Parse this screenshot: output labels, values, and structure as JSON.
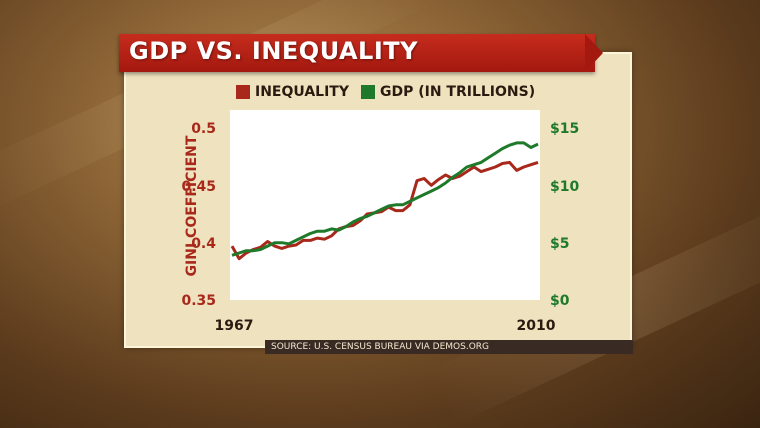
{
  "title": "GDP VS. INEQUALITY",
  "source": "SOURCE: U.S. CENSUS BUREAU VIA DEMOS.ORG",
  "colors": {
    "inequality": "#a8281b",
    "gdp": "#1e7a2a",
    "banner": "#b21f14",
    "panel": "#efe3bf"
  },
  "chart_data": {
    "type": "line",
    "legend_position": "top",
    "legend": [
      "INEQUALITY",
      "GDP (IN TRILLIONS)"
    ],
    "ylabel_left": "GINI COEFFICIENT",
    "ylim_left": [
      0.35,
      0.5
    ],
    "yticks_left": [
      "0.5",
      "0.45",
      "0.4",
      "0.35"
    ],
    "ylim_right": [
      0,
      15
    ],
    "yticks_right": [
      "$15",
      "$10",
      "$5",
      "$0"
    ],
    "xticks": [
      "1967",
      "2010"
    ],
    "xlim": [
      1967,
      2010
    ],
    "grid": false,
    "series": [
      {
        "name": "INEQUALITY",
        "axis": "left",
        "x": [
          1967,
          1968,
          1969,
          1970,
          1971,
          1972,
          1973,
          1974,
          1975,
          1976,
          1977,
          1978,
          1979,
          1980,
          1981,
          1982,
          1983,
          1984,
          1985,
          1986,
          1987,
          1988,
          1989,
          1990,
          1991,
          1992,
          1993,
          1994,
          1995,
          1996,
          1997,
          1998,
          1999,
          2000,
          2001,
          2002,
          2003,
          2004,
          2005,
          2006,
          2007,
          2008,
          2009,
          2010
        ],
        "values": [
          0.397,
          0.386,
          0.391,
          0.394,
          0.396,
          0.401,
          0.397,
          0.395,
          0.397,
          0.398,
          0.402,
          0.402,
          0.404,
          0.403,
          0.406,
          0.412,
          0.414,
          0.415,
          0.419,
          0.425,
          0.426,
          0.427,
          0.431,
          0.428,
          0.428,
          0.433,
          0.454,
          0.456,
          0.45,
          0.455,
          0.459,
          0.456,
          0.458,
          0.462,
          0.466,
          0.462,
          0.464,
          0.466,
          0.469,
          0.47,
          0.463,
          0.466,
          0.468,
          0.47
        ]
      },
      {
        "name": "GDP (IN TRILLIONS)",
        "axis": "right",
        "x": [
          1967,
          1968,
          1969,
          1970,
          1971,
          1972,
          1973,
          1974,
          1975,
          1976,
          1977,
          1978,
          1979,
          1980,
          1981,
          1982,
          1983,
          1984,
          1985,
          1986,
          1987,
          1988,
          1989,
          1990,
          1991,
          1992,
          1993,
          1994,
          1995,
          1996,
          1997,
          1998,
          1999,
          2000,
          2001,
          2002,
          2003,
          2004,
          2005,
          2006,
          2007,
          2008,
          2009,
          2010
        ],
        "values": [
          3.9,
          4.1,
          4.3,
          4.3,
          4.4,
          4.7,
          5.0,
          5.0,
          4.9,
          5.2,
          5.5,
          5.8,
          6.0,
          6.0,
          6.2,
          6.1,
          6.4,
          6.8,
          7.1,
          7.3,
          7.6,
          7.9,
          8.2,
          8.3,
          8.3,
          8.6,
          8.9,
          9.2,
          9.5,
          9.8,
          10.2,
          10.7,
          11.1,
          11.6,
          11.8,
          12.0,
          12.4,
          12.8,
          13.2,
          13.5,
          13.7,
          13.7,
          13.3,
          13.6
        ]
      }
    ]
  }
}
